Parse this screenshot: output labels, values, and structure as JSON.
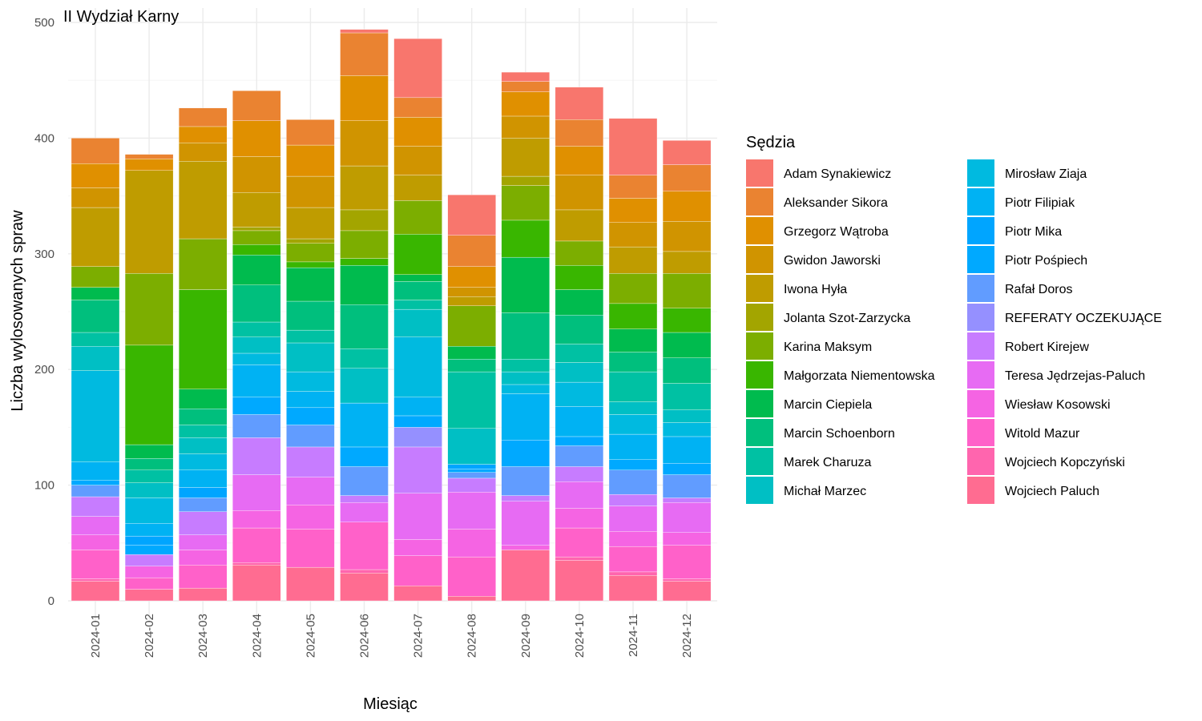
{
  "chart_data": {
    "type": "bar",
    "stacked": true,
    "title": "II Wydział Karny",
    "xlabel": "Miesiąc",
    "ylabel": "Liczba wylosowanych spraw",
    "ylim": [
      0,
      510
    ],
    "yticks": [
      0,
      100,
      200,
      300,
      400,
      500
    ],
    "grid": true,
    "legend_title": "Sędzia",
    "legend_position": "right",
    "categories": [
      "2024-01",
      "2024-02",
      "2024-03",
      "2024-04",
      "2024-05",
      "2024-06",
      "2024-07",
      "2024-08",
      "2024-09",
      "2024-10",
      "2024-11",
      "2024-12"
    ],
    "series": [
      {
        "name": "Adam Synakiewicz",
        "color": "#F8766D",
        "values": [
          0,
          0,
          0,
          0,
          0,
          3,
          51,
          35,
          8,
          28,
          49,
          21
        ]
      },
      {
        "name": "Aleksander Sikora",
        "color": "#EA8331",
        "values": [
          22,
          4,
          16,
          26,
          22,
          37,
          17,
          27,
          9,
          23,
          20,
          23
        ]
      },
      {
        "name": "Grzegorz Wątroba",
        "color": "#E09000",
        "values": [
          21,
          10,
          14,
          31,
          27,
          39,
          25,
          18,
          21,
          25,
          21,
          26
        ]
      },
      {
        "name": "Gwidon Jaworski",
        "color": "#D09400",
        "values": [
          17,
          0,
          16,
          31,
          27,
          39,
          25,
          8,
          19,
          30,
          21,
          26
        ]
      },
      {
        "name": "Iwona Hyła",
        "color": "#BF9C00",
        "values": [
          51,
          89,
          67,
          30,
          27,
          38,
          22,
          8,
          33,
          27,
          23,
          19
        ]
      },
      {
        "name": "Jolanta Szot-Zarzycka",
        "color": "#A3A500",
        "values": [
          0,
          0,
          0,
          3,
          4,
          18,
          0,
          0,
          8,
          0,
          0,
          0
        ]
      },
      {
        "name": "Karina Maksym",
        "color": "#7CAE00",
        "values": [
          18,
          62,
          44,
          12,
          16,
          24,
          29,
          35,
          30,
          21,
          26,
          30
        ]
      },
      {
        "name": "Małgorzata Niementowska",
        "color": "#39B600",
        "values": [
          0,
          86,
          86,
          9,
          5,
          6,
          35,
          0,
          32,
          21,
          22,
          21
        ]
      },
      {
        "name": "Marcin Ciepiela",
        "color": "#00BB4E",
        "values": [
          11,
          12,
          17,
          26,
          29,
          34,
          6,
          11,
          48,
          22,
          20,
          22
        ]
      },
      {
        "name": "Marcin Schoenborn",
        "color": "#00BF7D",
        "values": [
          28,
          10,
          14,
          32,
          25,
          38,
          16,
          11,
          40,
          25,
          17,
          22
        ]
      },
      {
        "name": "Marek Charuza",
        "color": "#00C1A3",
        "values": [
          12,
          11,
          11,
          13,
          11,
          17,
          8,
          49,
          11,
          16,
          26,
          23
        ]
      },
      {
        "name": "Michał Marzec",
        "color": "#00BFC4",
        "values": [
          21,
          13,
          14,
          14,
          25,
          30,
          24,
          31,
          11,
          17,
          11,
          11
        ]
      },
      {
        "name": "Mirosław Ziaja",
        "color": "#00BAE0",
        "values": [
          79,
          22,
          14,
          10,
          17,
          0,
          52,
          0,
          8,
          21,
          17,
          12
        ]
      },
      {
        "name": "Piotr Filipiak",
        "color": "#00B2F3",
        "values": [
          16,
          11,
          15,
          28,
          14,
          38,
          16,
          0,
          40,
          26,
          22,
          23
        ]
      },
      {
        "name": "Piotr Mika",
        "color": "#00A5FF",
        "values": [
          0,
          8,
          9,
          0,
          0,
          0,
          0,
          4,
          0,
          0,
          0,
          0
        ]
      },
      {
        "name": "Piotr Pośpiech",
        "color": "#00A9FF",
        "values": [
          4,
          8,
          0,
          15,
          15,
          17,
          10,
          3,
          23,
          8,
          9,
          10
        ]
      },
      {
        "name": "Rafał Doros",
        "color": "#619CFF",
        "values": [
          10,
          0,
          12,
          20,
          19,
          25,
          0,
          5,
          25,
          18,
          21,
          20
        ]
      },
      {
        "name": "REFERATY OCZEKUJĄCE",
        "color": "#9590FF",
        "values": [
          0,
          0,
          0,
          0,
          0,
          0,
          17,
          0,
          0,
          0,
          0,
          0
        ]
      },
      {
        "name": "Robert Kirejew",
        "color": "#C77CFF",
        "values": [
          17,
          10,
          20,
          32,
          26,
          6,
          40,
          12,
          5,
          13,
          10,
          4
        ]
      },
      {
        "name": "Teresa Jędrzejas-Paluch",
        "color": "#E76BF3",
        "values": [
          16,
          0,
          13,
          31,
          24,
          17,
          40,
          32,
          38,
          23,
          22,
          26
        ]
      },
      {
        "name": "Wiesław Kosowski",
        "color": "#F564E3",
        "values": [
          13,
          10,
          13,
          15,
          21,
          0,
          14,
          24,
          4,
          17,
          13,
          11
        ]
      },
      {
        "name": "Witold Mazur",
        "color": "#FF61C9",
        "values": [
          25,
          10,
          20,
          30,
          33,
          41,
          26,
          34,
          0,
          25,
          22,
          29
        ]
      },
      {
        "name": "Wojciech Kopczyński",
        "color": "#FF65AE",
        "values": [
          2,
          0,
          0,
          2,
          0,
          3,
          0,
          0,
          0,
          3,
          3,
          2
        ]
      },
      {
        "name": "Wojciech Paluch",
        "color": "#FF6C91",
        "values": [
          17,
          10,
          11,
          31,
          29,
          24,
          13,
          4,
          44,
          35,
          22,
          17
        ]
      }
    ]
  }
}
